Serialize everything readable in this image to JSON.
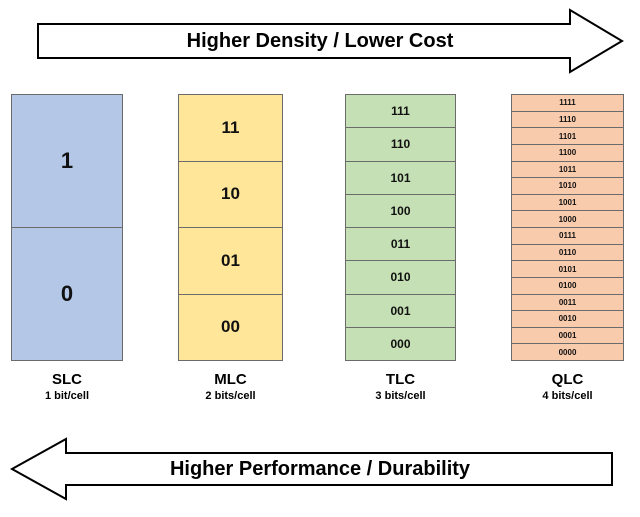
{
  "top_arrow": {
    "label": "Higher Density / Lower Cost",
    "direction": "right"
  },
  "bottom_arrow": {
    "label": "Higher Performance / Durability",
    "direction": "left"
  },
  "columns": [
    {
      "name": "SLC",
      "bits": "1 bit/cell",
      "fill": "#b4c7e7",
      "states": [
        "1",
        "0"
      ]
    },
    {
      "name": "MLC",
      "bits": "2 bits/cell",
      "fill": "#ffe699",
      "states": [
        "11",
        "10",
        "01",
        "00"
      ]
    },
    {
      "name": "TLC",
      "bits": "3 bits/cell",
      "fill": "#c5e0b4",
      "states": [
        "111",
        "110",
        "101",
        "100",
        "011",
        "010",
        "001",
        "000"
      ]
    },
    {
      "name": "QLC",
      "bits": "4 bits/cell",
      "fill": "#f8cbad",
      "states": [
        "1111",
        "1110",
        "1101",
        "1100",
        "1011",
        "1010",
        "1001",
        "1000",
        "0111",
        "0110",
        "0101",
        "0100",
        "0011",
        "0010",
        "0001",
        "0000"
      ]
    }
  ],
  "colors": {
    "border": "#6b6b6b",
    "text": "#000000"
  }
}
